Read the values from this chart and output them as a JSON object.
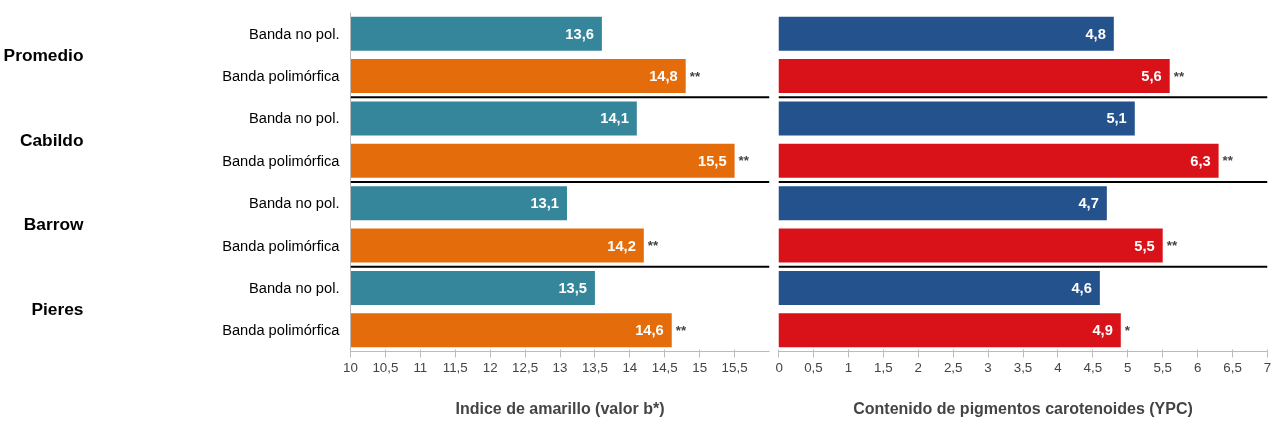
{
  "chart_data": [
    {
      "type": "bar",
      "orientation": "horizontal",
      "xlabel": "Indice de amarillo (valor b*)",
      "categories": [
        "Banda no pol.",
        "Banda polimórfica",
        "Banda no pol.",
        "Banda polimórfica",
        "Banda no pol.",
        "Banda polimórfica",
        "Banda no pol.",
        "Banda polimórfica"
      ],
      "values": [
        13.6,
        14.8,
        14.1,
        15.5,
        13.1,
        14.2,
        13.5,
        14.6
      ],
      "colors": [
        "#35869b",
        "#e46c0a",
        "#35869b",
        "#e46c0a",
        "#35869b",
        "#e46c0a",
        "#35869b",
        "#e46c0a"
      ],
      "value_labels": [
        "13,6",
        "14,8",
        "14,1",
        "15,5",
        "13,1",
        "14,2",
        "13,5",
        "14,6"
      ],
      "xlim": [
        10,
        16
      ],
      "xticks": [
        10,
        {
          "value": 10.5,
          "label": "10,5"
        },
        11,
        {
          "value": 11.5,
          "label": "11,5"
        },
        12,
        {
          "value": 12.5,
          "label": "12,5"
        },
        13,
        {
          "value": 13.5,
          "label": "13,5"
        },
        14,
        {
          "value": 14.5,
          "label": "14,5"
        },
        15,
        {
          "value": 15.5,
          "label": "15,5"
        }
      ],
      "annotations": [
        "Promedio",
        "Cabildo",
        "Barrow",
        "Pieres",
        "**",
        "**",
        "**",
        "**"
      ],
      "grid": false
    },
    {
      "type": "bar",
      "orientation": "horizontal",
      "xlabel": "Contenido de pigmentos carotenoides (YPC)",
      "categories": [
        null,
        null,
        null,
        null,
        null,
        null,
        null,
        null
      ],
      "values": [
        4.8,
        5.6,
        5.1,
        6.3,
        4.7,
        5.5,
        4.6,
        4.9
      ],
      "colors": [
        "#24528c",
        "#d91219",
        "#24528c",
        "#d91219",
        "#24528c",
        "#d91219",
        "#24528c",
        "#d91219"
      ],
      "value_labels": [
        "4,8",
        "5,6",
        "5,1",
        "6,3",
        "4,7",
        "5,5",
        "4,6",
        "4,9"
      ],
      "xlim": [
        0,
        7
      ],
      "xticks": [
        0,
        {
          "value": 0.5,
          "label": "0,5"
        },
        1,
        {
          "value": 1.5,
          "label": "1,5"
        },
        2,
        {
          "value": 2.5,
          "label": "2,5"
        },
        3,
        {
          "value": 3.5,
          "label": "3,5"
        },
        4,
        {
          "value": 4.5,
          "label": "4,5"
        },
        5,
        {
          "value": 5.5,
          "label": "5,5"
        },
        6,
        {
          "value": 6.5,
          "label": "6,5"
        },
        7
      ],
      "annotations": [
        "**",
        "**",
        "**",
        "*"
      ],
      "tick_labels": "x",
      "grid": false
    }
  ]
}
